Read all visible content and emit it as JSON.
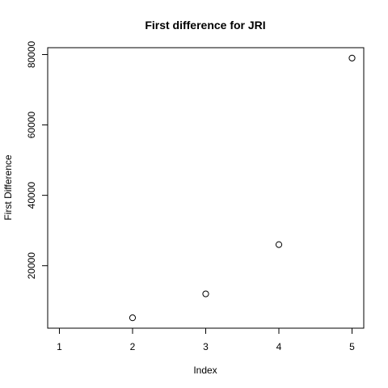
{
  "chart_data": {
    "type": "scatter",
    "title": "First difference for  JRI",
    "xlabel": "Index",
    "ylabel": "First Difference",
    "x": [
      2,
      3,
      4,
      5
    ],
    "y": [
      5200,
      12000,
      26000,
      79000
    ],
    "xlim": [
      1,
      5
    ],
    "ylim": [
      5200,
      79000
    ],
    "x_ticks": [
      1,
      2,
      3,
      4,
      5
    ],
    "y_ticks": [
      20000,
      40000,
      60000,
      80000
    ],
    "grid": false,
    "marker": "open-circle"
  }
}
